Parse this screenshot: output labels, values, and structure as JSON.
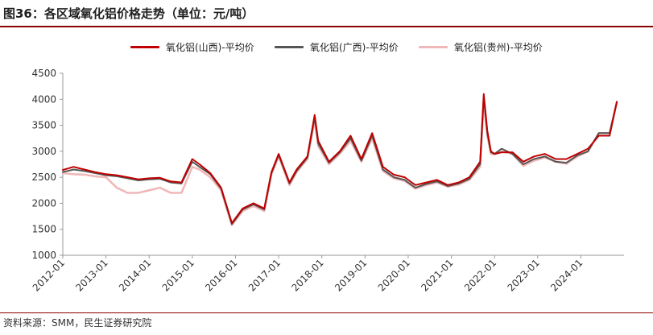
{
  "title": "图36：各区域氧化铝价格走势（单位：元/吨）",
  "source": "资料来源：SMM，民生证券研究院",
  "chart_data": {
    "type": "line",
    "title": "图36：各区域氧化铝价格走势（单位：元/吨）",
    "xlabel": "",
    "ylabel": "",
    "ylim": [
      1000,
      4500
    ],
    "yticks": [
      1000,
      1500,
      2000,
      2500,
      3000,
      3500,
      4000,
      4500
    ],
    "xlim": [
      "2012-01",
      "2025-01"
    ],
    "xticks": [
      "2012-01",
      "2013-01",
      "2014-01",
      "2015-01",
      "2016-01",
      "2017-01",
      "2018-01",
      "2019-01",
      "2020-01",
      "2021-01",
      "2022-01",
      "2023-01",
      "2024-01"
    ],
    "grid": false,
    "legend_position": "top",
    "x": [
      "2012-01",
      "2012-04",
      "2012-07",
      "2012-10",
      "2013-01",
      "2013-04",
      "2013-07",
      "2013-10",
      "2014-01",
      "2014-04",
      "2014-07",
      "2014-10",
      "2015-01",
      "2015-03",
      "2015-06",
      "2015-09",
      "2015-12",
      "2016-03",
      "2016-06",
      "2016-09",
      "2016-11",
      "2017-01",
      "2017-04",
      "2017-06",
      "2017-09",
      "2017-11",
      "2017-12",
      "2018-03",
      "2018-06",
      "2018-09",
      "2018-12",
      "2019-03",
      "2019-06",
      "2019-09",
      "2019-12",
      "2020-03",
      "2020-06",
      "2020-09",
      "2020-12",
      "2021-03",
      "2021-06",
      "2021-09",
      "2021-10",
      "2021-11",
      "2021-12",
      "2022-01",
      "2022-03",
      "2022-06",
      "2022-09",
      "2022-12",
      "2023-03",
      "2023-06",
      "2023-09",
      "2023-12",
      "2024-03",
      "2024-06",
      "2024-09",
      "2024-11"
    ],
    "series": [
      {
        "name": "氧化铝(山西)-平均价",
        "color": "#c00000",
        "values": [
          2640,
          2700,
          2650,
          2600,
          2560,
          2540,
          2500,
          2460,
          2480,
          2490,
          2420,
          2400,
          2850,
          2750,
          2580,
          2300,
          1620,
          1900,
          2000,
          1900,
          2600,
          2950,
          2400,
          2650,
          2900,
          3700,
          3200,
          2800,
          3000,
          3300,
          2850,
          3350,
          2700,
          2550,
          2500,
          2350,
          2400,
          2450,
          2350,
          2400,
          2500,
          2800,
          4100,
          3400,
          3000,
          2950,
          2980,
          2980,
          2800,
          2900,
          2950,
          2850,
          2850,
          2950,
          3050,
          3300,
          3300,
          3950
        ]
      },
      {
        "name": "氧化铝(广西)-平均价",
        "color": "#555555",
        "values": [
          2600,
          2650,
          2620,
          2580,
          2540,
          2520,
          2480,
          2440,
          2460,
          2470,
          2400,
          2380,
          2800,
          2700,
          2560,
          2280,
          1600,
          1880,
          1980,
          1880,
          2580,
          2930,
          2380,
          2620,
          2880,
          3650,
          3150,
          2780,
          2980,
          3250,
          2820,
          3300,
          2650,
          2500,
          2450,
          2300,
          2370,
          2420,
          2330,
          2380,
          2470,
          2750,
          4050,
          3350,
          2980,
          2950,
          3050,
          2950,
          2750,
          2850,
          2900,
          2800,
          2780,
          2920,
          3000,
          3350,
          3350,
          3950
        ]
      },
      {
        "name": "氧化铝(贵州)-平均价",
        "color": "#f0b8b8",
        "values": [
          2580,
          2560,
          2550,
          2520,
          2500,
          2300,
          2200,
          2200,
          2250,
          2300,
          2200,
          2200,
          2700,
          2650,
          2500,
          2250,
          1580,
          1850,
          1950,
          1850,
          2550,
          2900,
          2350,
          2600,
          2850,
          3600,
          3100,
          2750,
          2950,
          3200,
          2800,
          3250,
          2620,
          2480,
          2430,
          2280,
          2350,
          2400,
          2320,
          2360,
          2450,
          2700,
          3950,
          3300,
          2950,
          2940,
          3000,
          2950,
          2720,
          2820,
          2880,
          2800,
          2760,
          2900,
          3000,
          3350,
          3350,
          3950
        ]
      }
    ]
  }
}
